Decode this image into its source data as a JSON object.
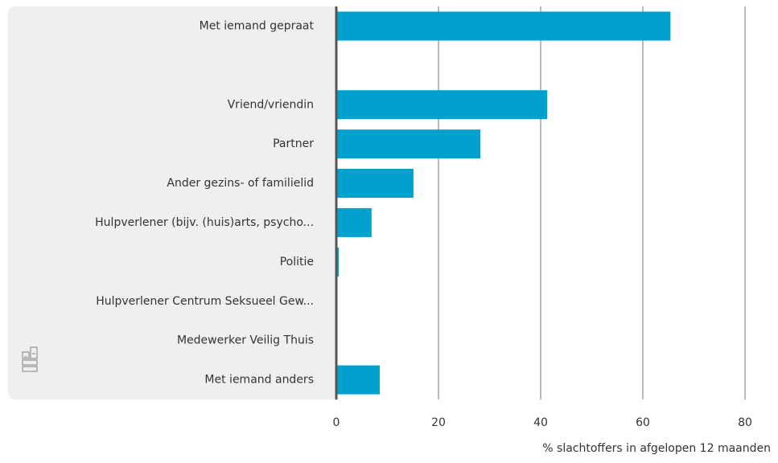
{
  "chart_data": {
    "type": "barh",
    "categories": [
      "Met iemand gepraat",
      null,
      "Vriend/vriendin",
      "Partner",
      "Ander gezins- of familielid",
      "Hulpverlener (bijv. (huis)arts, psycho...",
      "Politie",
      "Hulpverlener Centrum Seksueel Gew...",
      "Medewerker Veilig Thuis",
      "Met iemand anders"
    ],
    "values": [
      65.4,
      null,
      41.3,
      28.2,
      15.1,
      6.9,
      0.5,
      0,
      0,
      8.5
    ],
    "color": "#00a1cd",
    "xlim": [
      0,
      80
    ],
    "xticks": [
      0,
      20,
      40,
      60,
      80
    ],
    "xlabel": "% slachtoffers in afgelopen 12 maanden",
    "grid": true
  }
}
